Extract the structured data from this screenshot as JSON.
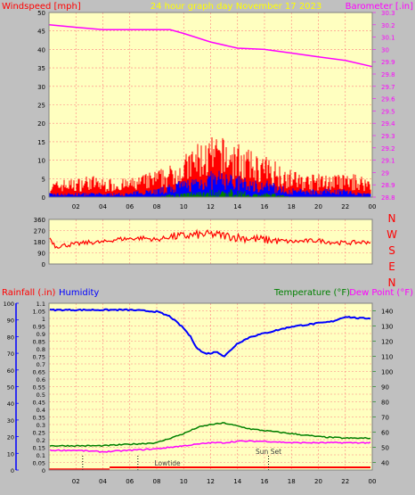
{
  "header": {
    "windspeed_label": "Windspeed [mph]",
    "title": "24 hour graph day   November 17 2023",
    "barometer_label": "Barometer [.in]"
  },
  "lower_header": {
    "rainfall_label": "Rainfall (.in)",
    "humidity_label": "Humidity",
    "temperature_label": "Temperature (°F)",
    "dewpoint_label": "Dew Point (°F)"
  },
  "compass": [
    "N",
    "W",
    "S",
    "E",
    "N"
  ],
  "annotations": {
    "lowtide": "Lowtide",
    "sunset": "Sun Set"
  },
  "colors": {
    "bg": "#c0c0c0",
    "plot": "#ffffc0",
    "grid": "#ff8080",
    "wind_gust": "#ff0000",
    "wind_avg": "#0000ff",
    "wind_low": "#008000",
    "barometer": "#ff00ff",
    "direction": "#ff0000",
    "humidity": "#0000ff",
    "temperature": "#008000",
    "dewpoint": "#ff00ff",
    "rain": "#ff0000"
  },
  "chart_data": [
    {
      "type": "area",
      "name": "wind_and_barometer",
      "x_ticks": [
        "02",
        "04",
        "06",
        "08",
        "10",
        "12",
        "14",
        "16",
        "18",
        "20",
        "22",
        "00"
      ],
      "y_left_ticks": [
        "0",
        "5",
        "10",
        "15",
        "20",
        "25",
        "30",
        "35",
        "40",
        "45",
        "50"
      ],
      "y_right_ticks": [
        "28.8",
        "28.9",
        "29",
        "29.1",
        "29.2",
        "29.3",
        "29.4",
        "29.5",
        "29.6",
        "29.7",
        "29.8",
        "29.9",
        "30",
        "30.1",
        "30.2",
        "30.3"
      ],
      "ylim_left": [
        0,
        50
      ],
      "ylim_right": [
        28.8,
        30.3
      ],
      "xlim": [
        0,
        24
      ],
      "wind_envelope": {
        "hours": [
          0,
          1,
          2,
          3,
          4,
          5,
          6,
          7,
          8,
          9,
          10,
          11,
          12,
          13,
          14,
          15,
          16,
          17,
          18,
          19,
          20,
          21,
          22,
          23,
          24
        ],
        "gust": [
          3,
          4,
          4,
          5,
          4,
          4,
          4,
          5,
          6,
          7,
          9,
          12,
          13,
          13,
          12,
          10,
          9,
          8,
          6,
          5,
          5,
          5,
          5,
          5,
          4
        ],
        "average": [
          1,
          1,
          1,
          1,
          1,
          1,
          1,
          2,
          2,
          3,
          4,
          5,
          6,
          6,
          5,
          4,
          4,
          3,
          2,
          2,
          2,
          2,
          2,
          1,
          1
        ],
        "low": [
          0,
          0,
          0,
          0,
          0,
          0,
          0,
          0,
          0,
          1,
          1,
          2,
          2,
          2,
          2,
          1,
          1,
          1,
          0,
          0,
          0,
          0,
          0,
          0,
          0
        ]
      },
      "barometer": {
        "hours": [
          0,
          2,
          4,
          6,
          8,
          9,
          10,
          12,
          14,
          16,
          18,
          20,
          22,
          24
        ],
        "values": [
          30.2,
          30.18,
          30.16,
          30.16,
          30.16,
          30.16,
          30.13,
          30.06,
          30.01,
          30.0,
          29.97,
          29.94,
          29.91,
          29.86
        ]
      }
    },
    {
      "type": "line",
      "name": "wind_direction",
      "y_ticks": [
        "360",
        "270",
        "180",
        "90",
        "0"
      ],
      "ylim": [
        0,
        360
      ],
      "hours": [
        0,
        0.5,
        1,
        2,
        3,
        4,
        5,
        6,
        7,
        8,
        9,
        10,
        11,
        12,
        13,
        14,
        15,
        16,
        17,
        18,
        19,
        20,
        21,
        22,
        23,
        24
      ],
      "values": [
        220,
        140,
        150,
        160,
        175,
        175,
        200,
        205,
        210,
        195,
        220,
        225,
        235,
        240,
        230,
        215,
        205,
        195,
        190,
        180,
        185,
        190,
        175,
        170,
        175,
        180
      ]
    },
    {
      "type": "line",
      "name": "humidity_temperature",
      "y_left_ticks": [
        "0",
        "10",
        "20",
        "30",
        "40",
        "50",
        "60",
        "70",
        "80",
        "90",
        "100"
      ],
      "ylim_left": [
        0,
        100
      ],
      "y_rain_ticks": [
        "0",
        "0.05",
        "0.1",
        "0.15",
        "0.2",
        "0.25",
        "0.3",
        "0.35",
        "0.4",
        "0.45",
        "0.5",
        "0.55",
        "0.6",
        "0.65",
        "0.7",
        "0.75",
        "0.8",
        "0.85",
        "0.9",
        "0.95",
        "1",
        "1.05",
        "1.1"
      ],
      "ylim_rain": [
        0,
        1.1
      ],
      "y_right_ticks": [
        "40",
        "50",
        "60",
        "70",
        "80",
        "90",
        "100",
        "110",
        "120",
        "130",
        "140"
      ],
      "ylim_right": [
        35,
        145
      ],
      "humidity": {
        "hours": [
          0,
          2,
          4,
          6,
          8,
          9,
          10,
          10.5,
          11,
          11.5,
          12,
          12.5,
          13,
          13.5,
          14,
          15,
          16,
          18,
          20,
          21,
          22,
          23,
          24
        ],
        "values": [
          96,
          96,
          96,
          96,
          95,
          92,
          85,
          80,
          73,
          70,
          70,
          71,
          68,
          72,
          76,
          80,
          82,
          86,
          88,
          89,
          92,
          91,
          91
        ]
      },
      "temperature": {
        "hours": [
          0,
          2,
          4,
          6,
          8,
          9,
          10,
          11,
          12,
          13,
          14,
          15,
          16,
          18,
          20,
          22,
          24
        ],
        "values": [
          51,
          51,
          51,
          52,
          53,
          56,
          59,
          63,
          65,
          66,
          64,
          62,
          61,
          59,
          57,
          56,
          56
        ]
      },
      "dewpoint": {
        "hours": [
          0,
          2,
          4,
          6,
          8,
          9,
          10,
          11,
          12,
          13,
          14,
          16,
          18,
          20,
          22,
          24
        ],
        "values": [
          48,
          48,
          47,
          48,
          49,
          50,
          51,
          52,
          53,
          53,
          54,
          54,
          53,
          53,
          53,
          53
        ]
      },
      "rain": {
        "hours": [
          0,
          24
        ],
        "values": [
          0,
          0
        ]
      }
    }
  ]
}
